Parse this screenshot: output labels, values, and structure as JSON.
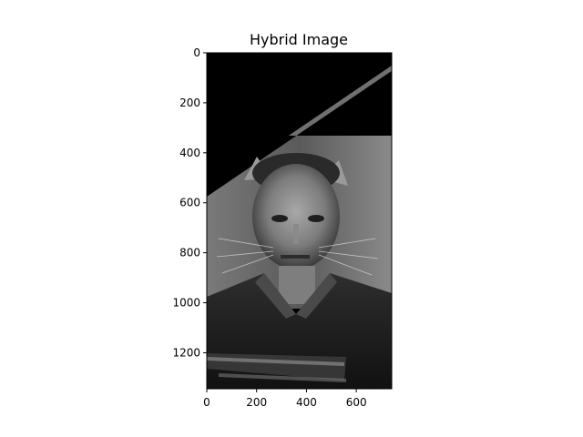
{
  "figure": {
    "title": "Hybrid Image"
  },
  "chart_data": {
    "type": "image",
    "title": "Hybrid Image",
    "xlabel": "",
    "ylabel": "",
    "xlim": [
      0,
      742
    ],
    "ylim": [
      1344,
      0
    ],
    "x_ticks": [
      0,
      200,
      400,
      600
    ],
    "y_ticks": [
      0,
      200,
      400,
      600,
      800,
      1000,
      1200
    ],
    "grid": false,
    "colormap": "gray",
    "colors": {
      "background": "#ffffff",
      "axes_line": "#000000",
      "image_dark": "#000000",
      "image_mid": "#6a6a6a",
      "image_light": "#c9c9c9"
    }
  }
}
